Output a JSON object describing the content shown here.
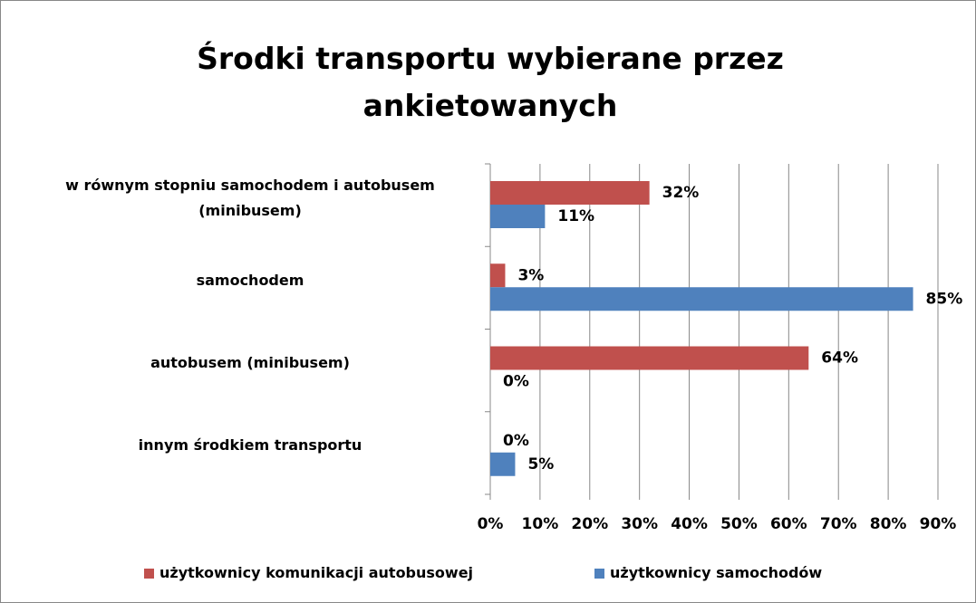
{
  "chart_data": {
    "type": "bar",
    "orientation": "horizontal",
    "title": "Środki transportu wybierane przez ankietowanych",
    "categories": [
      "w równym stopniu samochodem i autobusem (minibusem)",
      "samochodem",
      "autobusem (minibusem)",
      "innym środkiem transportu"
    ],
    "series": [
      {
        "name": "użytkownicy komunikacji autobusowej",
        "color": "#c0504d",
        "values": [
          32,
          3,
          64,
          0
        ],
        "value_labels": [
          "32%",
          "3%",
          "64%",
          "0%"
        ]
      },
      {
        "name": "użytkownicy samochodów",
        "color": "#4f81bd",
        "values": [
          11,
          85,
          0,
          5
        ],
        "value_labels": [
          "11%",
          "85%",
          "0%",
          "5%"
        ]
      }
    ],
    "xlim": [
      0,
      90
    ],
    "xticks": [
      {
        "value": 0,
        "label": "0%"
      },
      {
        "value": 10,
        "label": "10%"
      },
      {
        "value": 20,
        "label": "20%"
      },
      {
        "value": 30,
        "label": "30%"
      },
      {
        "value": 40,
        "label": "40%"
      },
      {
        "value": 50,
        "label": "50%"
      },
      {
        "value": 60,
        "label": "60%"
      },
      {
        "value": 70,
        "label": "70%"
      },
      {
        "value": 80,
        "label": "80%"
      },
      {
        "value": 90,
        "label": "90%"
      }
    ],
    "grid": true,
    "legend": "bottom"
  }
}
